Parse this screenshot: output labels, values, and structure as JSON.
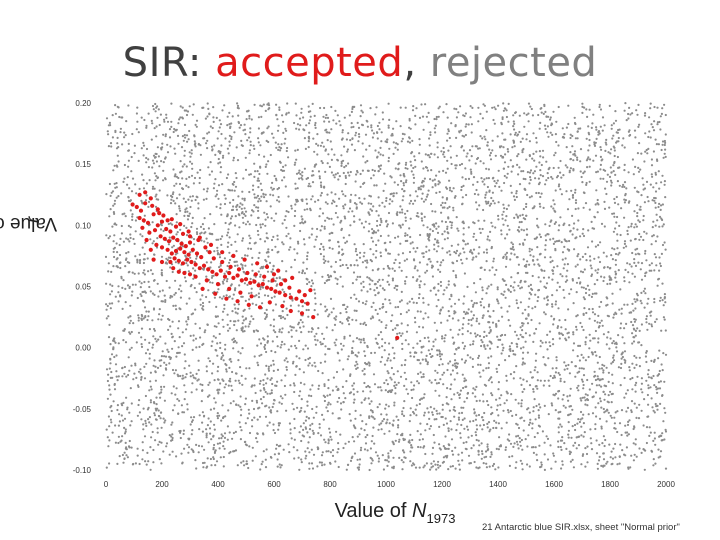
{
  "title": {
    "prefix": "SIR: ",
    "accepted": "accepted",
    "separator": ", ",
    "rejected": "rejected"
  },
  "footnote": "21 Antarctic blue SIR.xlsx, sheet \"Normal prior\"",
  "chart_data": {
    "type": "scatter",
    "xlabel": {
      "text": "Value of ",
      "italic": "N",
      "subscript": "1973"
    },
    "ylabel": {
      "text": "Value of ",
      "italic": "r"
    },
    "xlim": [
      0,
      2000
    ],
    "ylim": [
      -0.1,
      0.2
    ],
    "x_ticks": [
      "0",
      "200",
      "400",
      "600",
      "800",
      "1000",
      "1200",
      "1400",
      "1600",
      "1800",
      "2000"
    ],
    "y_ticks": [
      "0.20",
      "0.15",
      "0.10",
      "0.05",
      "0.00",
      "-0.05",
      "-0.10"
    ],
    "grid": false,
    "colors": {
      "accepted": "#e01b1b",
      "rejected": "#8c8c8c"
    },
    "series": [
      {
        "name": "rejected",
        "distribution": "uniform",
        "approx_count": 6000,
        "x_range": [
          0,
          2000
        ],
        "y_range": [
          -0.1,
          0.2
        ]
      },
      {
        "name": "accepted",
        "points": [
          [
            95,
            0.117
          ],
          [
            110,
            0.115
          ],
          [
            125,
            0.112
          ],
          [
            120,
            0.106
          ],
          [
            135,
            0.104
          ],
          [
            150,
            0.102
          ],
          [
            140,
            0.118
          ],
          [
            160,
            0.122
          ],
          [
            170,
            0.109
          ],
          [
            185,
            0.1
          ],
          [
            200,
            0.103
          ],
          [
            215,
            0.097
          ],
          [
            230,
            0.095
          ],
          [
            130,
            0.098
          ],
          [
            155,
            0.094
          ],
          [
            175,
            0.096
          ],
          [
            195,
            0.091
          ],
          [
            210,
            0.089
          ],
          [
            225,
            0.087
          ],
          [
            240,
            0.09
          ],
          [
            255,
            0.088
          ],
          [
            270,
            0.085
          ],
          [
            285,
            0.083
          ],
          [
            300,
            0.086
          ],
          [
            250,
            0.079
          ],
          [
            265,
            0.081
          ],
          [
            280,
            0.078
          ],
          [
            295,
            0.076
          ],
          [
            310,
            0.08
          ],
          [
            325,
            0.077
          ],
          [
            340,
            0.074
          ],
          [
            180,
            0.084
          ],
          [
            200,
            0.082
          ],
          [
            220,
            0.08
          ],
          [
            235,
            0.077
          ],
          [
            245,
            0.073
          ],
          [
            260,
            0.071
          ],
          [
            275,
            0.069
          ],
          [
            290,
            0.072
          ],
          [
            305,
            0.07
          ],
          [
            320,
            0.068
          ],
          [
            335,
            0.065
          ],
          [
            350,
            0.067
          ],
          [
            365,
            0.064
          ],
          [
            380,
            0.062
          ],
          [
            395,
            0.06
          ],
          [
            410,
            0.063
          ],
          [
            425,
            0.058
          ],
          [
            440,
            0.061
          ],
          [
            455,
            0.057
          ],
          [
            470,
            0.059
          ],
          [
            485,
            0.055
          ],
          [
            500,
            0.056
          ],
          [
            515,
            0.053
          ],
          [
            530,
            0.054
          ],
          [
            545,
            0.051
          ],
          [
            560,
            0.052
          ],
          [
            575,
            0.049
          ],
          [
            590,
            0.048
          ],
          [
            605,
            0.046
          ],
          [
            620,
            0.045
          ],
          [
            640,
            0.043
          ],
          [
            660,
            0.041
          ],
          [
            680,
            0.04
          ],
          [
            700,
            0.038
          ],
          [
            720,
            0.036
          ],
          [
            600,
            0.06
          ],
          [
            640,
            0.055
          ],
          [
            585,
            0.037
          ],
          [
            630,
            0.034
          ],
          [
            660,
            0.03
          ],
          [
            700,
            0.028
          ],
          [
            740,
            0.025
          ],
          [
            520,
            0.042
          ],
          [
            480,
            0.045
          ],
          [
            440,
            0.048
          ],
          [
            400,
            0.052
          ],
          [
            360,
            0.055
          ],
          [
            320,
            0.058
          ],
          [
            280,
            0.061
          ],
          [
            240,
            0.065
          ],
          [
            200,
            0.07
          ],
          [
            170,
            0.072
          ],
          [
            160,
            0.08
          ],
          [
            145,
            0.088
          ],
          [
            230,
            0.07
          ],
          [
            260,
            0.062
          ],
          [
            300,
            0.06
          ],
          [
            345,
            0.048
          ],
          [
            390,
            0.044
          ],
          [
            430,
            0.04
          ],
          [
            470,
            0.038
          ],
          [
            510,
            0.035
          ],
          [
            550,
            0.033
          ],
          [
            120,
            0.125
          ],
          [
            140,
            0.127
          ],
          [
            165,
            0.116
          ],
          [
            190,
            0.11
          ],
          [
            205,
            0.108
          ],
          [
            220,
            0.104
          ],
          [
            250,
            0.099
          ],
          [
            275,
            0.093
          ],
          [
            300,
            0.091
          ],
          [
            330,
            0.088
          ],
          [
            355,
            0.082
          ],
          [
            370,
            0.078
          ],
          [
            385,
            0.073
          ],
          [
            415,
            0.07
          ],
          [
            445,
            0.066
          ],
          [
            475,
            0.064
          ],
          [
            505,
            0.061
          ],
          [
            535,
            0.06
          ],
          [
            565,
            0.058
          ],
          [
            595,
            0.055
          ],
          [
            625,
            0.052
          ],
          [
            655,
            0.049
          ],
          [
            690,
            0.046
          ],
          [
            710,
            0.043
          ],
          [
            730,
            0.047
          ],
          [
            665,
            0.057
          ],
          [
            615,
            0.063
          ],
          [
            575,
            0.066
          ],
          [
            540,
            0.069
          ],
          [
            495,
            0.072
          ],
          [
            455,
            0.075
          ],
          [
            415,
            0.078
          ],
          [
            375,
            0.084
          ],
          [
            335,
            0.09
          ],
          [
            295,
            0.095
          ],
          [
            265,
            0.101
          ],
          [
            235,
            0.105
          ],
          [
            185,
            0.113
          ],
          [
            1040,
            0.008
          ]
        ]
      }
    ]
  }
}
